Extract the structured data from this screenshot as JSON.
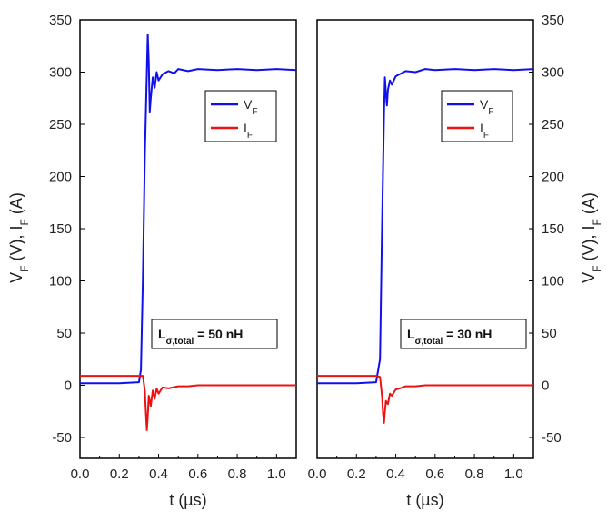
{
  "y_axis_label": "V",
  "y_axis_label_parts": [
    {
      "text": "V",
      "sub": false
    },
    {
      "text": "F",
      "sub": true
    },
    {
      "text": " (V), I",
      "sub": false
    },
    {
      "text": "F",
      "sub": true
    },
    {
      "text": " (A)",
      "sub": false
    }
  ],
  "chart_data": [
    {
      "type": "line",
      "xlabel": "t (µs)",
      "xlim": [
        0.0,
        1.1
      ],
      "ylim": [
        -70,
        350
      ],
      "x_ticks": [
        "0.0",
        "0.2",
        "0.4",
        "0.6",
        "0.8",
        "1.0"
      ],
      "x_tick_values": [
        0.0,
        0.2,
        0.4,
        0.6,
        0.8,
        1.0
      ],
      "y_ticks": [
        "-50",
        "0",
        "50",
        "100",
        "150",
        "200",
        "250",
        "300",
        "350"
      ],
      "y_tick_values": [
        -50,
        0,
        50,
        100,
        150,
        200,
        250,
        300,
        350
      ],
      "y_tick_side": "left",
      "legend": {
        "placement": "upper-right",
        "entries": [
          {
            "main": "V",
            "sub": "F",
            "color": "#1010ee"
          },
          {
            "main": "I",
            "sub": "F",
            "color": "#ee1111"
          }
        ]
      },
      "annotation": {
        "main": "L",
        "sub": "σ,total",
        "rest": " = 50 nH"
      },
      "series": [
        {
          "name": "VF",
          "color": "#1010ee",
          "x": [
            0.0,
            0.1,
            0.2,
            0.3,
            0.31,
            0.32,
            0.33,
            0.34,
            0.345,
            0.35,
            0.355,
            0.36,
            0.37,
            0.38,
            0.39,
            0.4,
            0.42,
            0.45,
            0.48,
            0.5,
            0.55,
            0.6,
            0.7,
            0.8,
            0.9,
            1.0,
            1.1
          ],
          "y": [
            2,
            2,
            2,
            3,
            15,
            100,
            220,
            300,
            336,
            310,
            262,
            275,
            295,
            285,
            300,
            292,
            298,
            301,
            299,
            303,
            301,
            303,
            302,
            303,
            302,
            303,
            302
          ]
        },
        {
          "name": "IF",
          "color": "#ee1111",
          "x": [
            0.0,
            0.1,
            0.2,
            0.3,
            0.32,
            0.33,
            0.335,
            0.34,
            0.345,
            0.35,
            0.36,
            0.37,
            0.38,
            0.39,
            0.4,
            0.42,
            0.45,
            0.5,
            0.55,
            0.6,
            0.7,
            0.8,
            0.9,
            1.0,
            1.1
          ],
          "y": [
            9,
            9,
            9,
            9,
            9,
            -5,
            -25,
            -43,
            -30,
            -10,
            -20,
            -5,
            -13,
            -3,
            -8,
            -2,
            -3,
            -1,
            -1,
            0,
            0,
            0,
            0,
            0,
            0
          ]
        }
      ]
    },
    {
      "type": "line",
      "xlabel": "t (µs)",
      "xlim": [
        0.0,
        1.1
      ],
      "ylim": [
        -70,
        350
      ],
      "x_ticks": [
        "0.0",
        "0.2",
        "0.4",
        "0.6",
        "0.8",
        "1.0"
      ],
      "x_tick_values": [
        0.0,
        0.2,
        0.4,
        0.6,
        0.8,
        1.0
      ],
      "y_ticks": [
        "-50",
        "0",
        "50",
        "100",
        "150",
        "200",
        "250",
        "300",
        "350"
      ],
      "y_tick_values": [
        -50,
        0,
        50,
        100,
        150,
        200,
        250,
        300,
        350
      ],
      "y_tick_side": "right",
      "legend": {
        "placement": "upper-right",
        "entries": [
          {
            "main": "V",
            "sub": "F",
            "color": "#1010ee"
          },
          {
            "main": "I",
            "sub": "F",
            "color": "#ee1111"
          }
        ]
      },
      "annotation": {
        "main": "L",
        "sub": "σ,total",
        "rest": " = 30 nH"
      },
      "series": [
        {
          "name": "VF",
          "color": "#1010ee",
          "x": [
            0.0,
            0.1,
            0.2,
            0.3,
            0.32,
            0.33,
            0.34,
            0.345,
            0.35,
            0.355,
            0.36,
            0.37,
            0.38,
            0.4,
            0.42,
            0.45,
            0.5,
            0.55,
            0.6,
            0.7,
            0.8,
            0.9,
            1.0,
            1.1
          ],
          "y": [
            2,
            2,
            2,
            3,
            25,
            150,
            260,
            295,
            280,
            268,
            283,
            292,
            288,
            296,
            298,
            301,
            300,
            303,
            302,
            303,
            302,
            303,
            302,
            303
          ]
        },
        {
          "name": "IF",
          "color": "#ee1111",
          "x": [
            0.0,
            0.1,
            0.2,
            0.3,
            0.32,
            0.33,
            0.335,
            0.34,
            0.345,
            0.35,
            0.36,
            0.37,
            0.38,
            0.4,
            0.42,
            0.45,
            0.5,
            0.55,
            0.6,
            0.7,
            0.8,
            0.9,
            1.0,
            1.1
          ],
          "y": [
            9,
            9,
            9,
            9,
            8,
            -10,
            -27,
            -36,
            -25,
            -15,
            -18,
            -8,
            -10,
            -4,
            -3,
            -1,
            -1,
            0,
            0,
            0,
            0,
            0,
            0,
            0
          ]
        }
      ]
    }
  ]
}
